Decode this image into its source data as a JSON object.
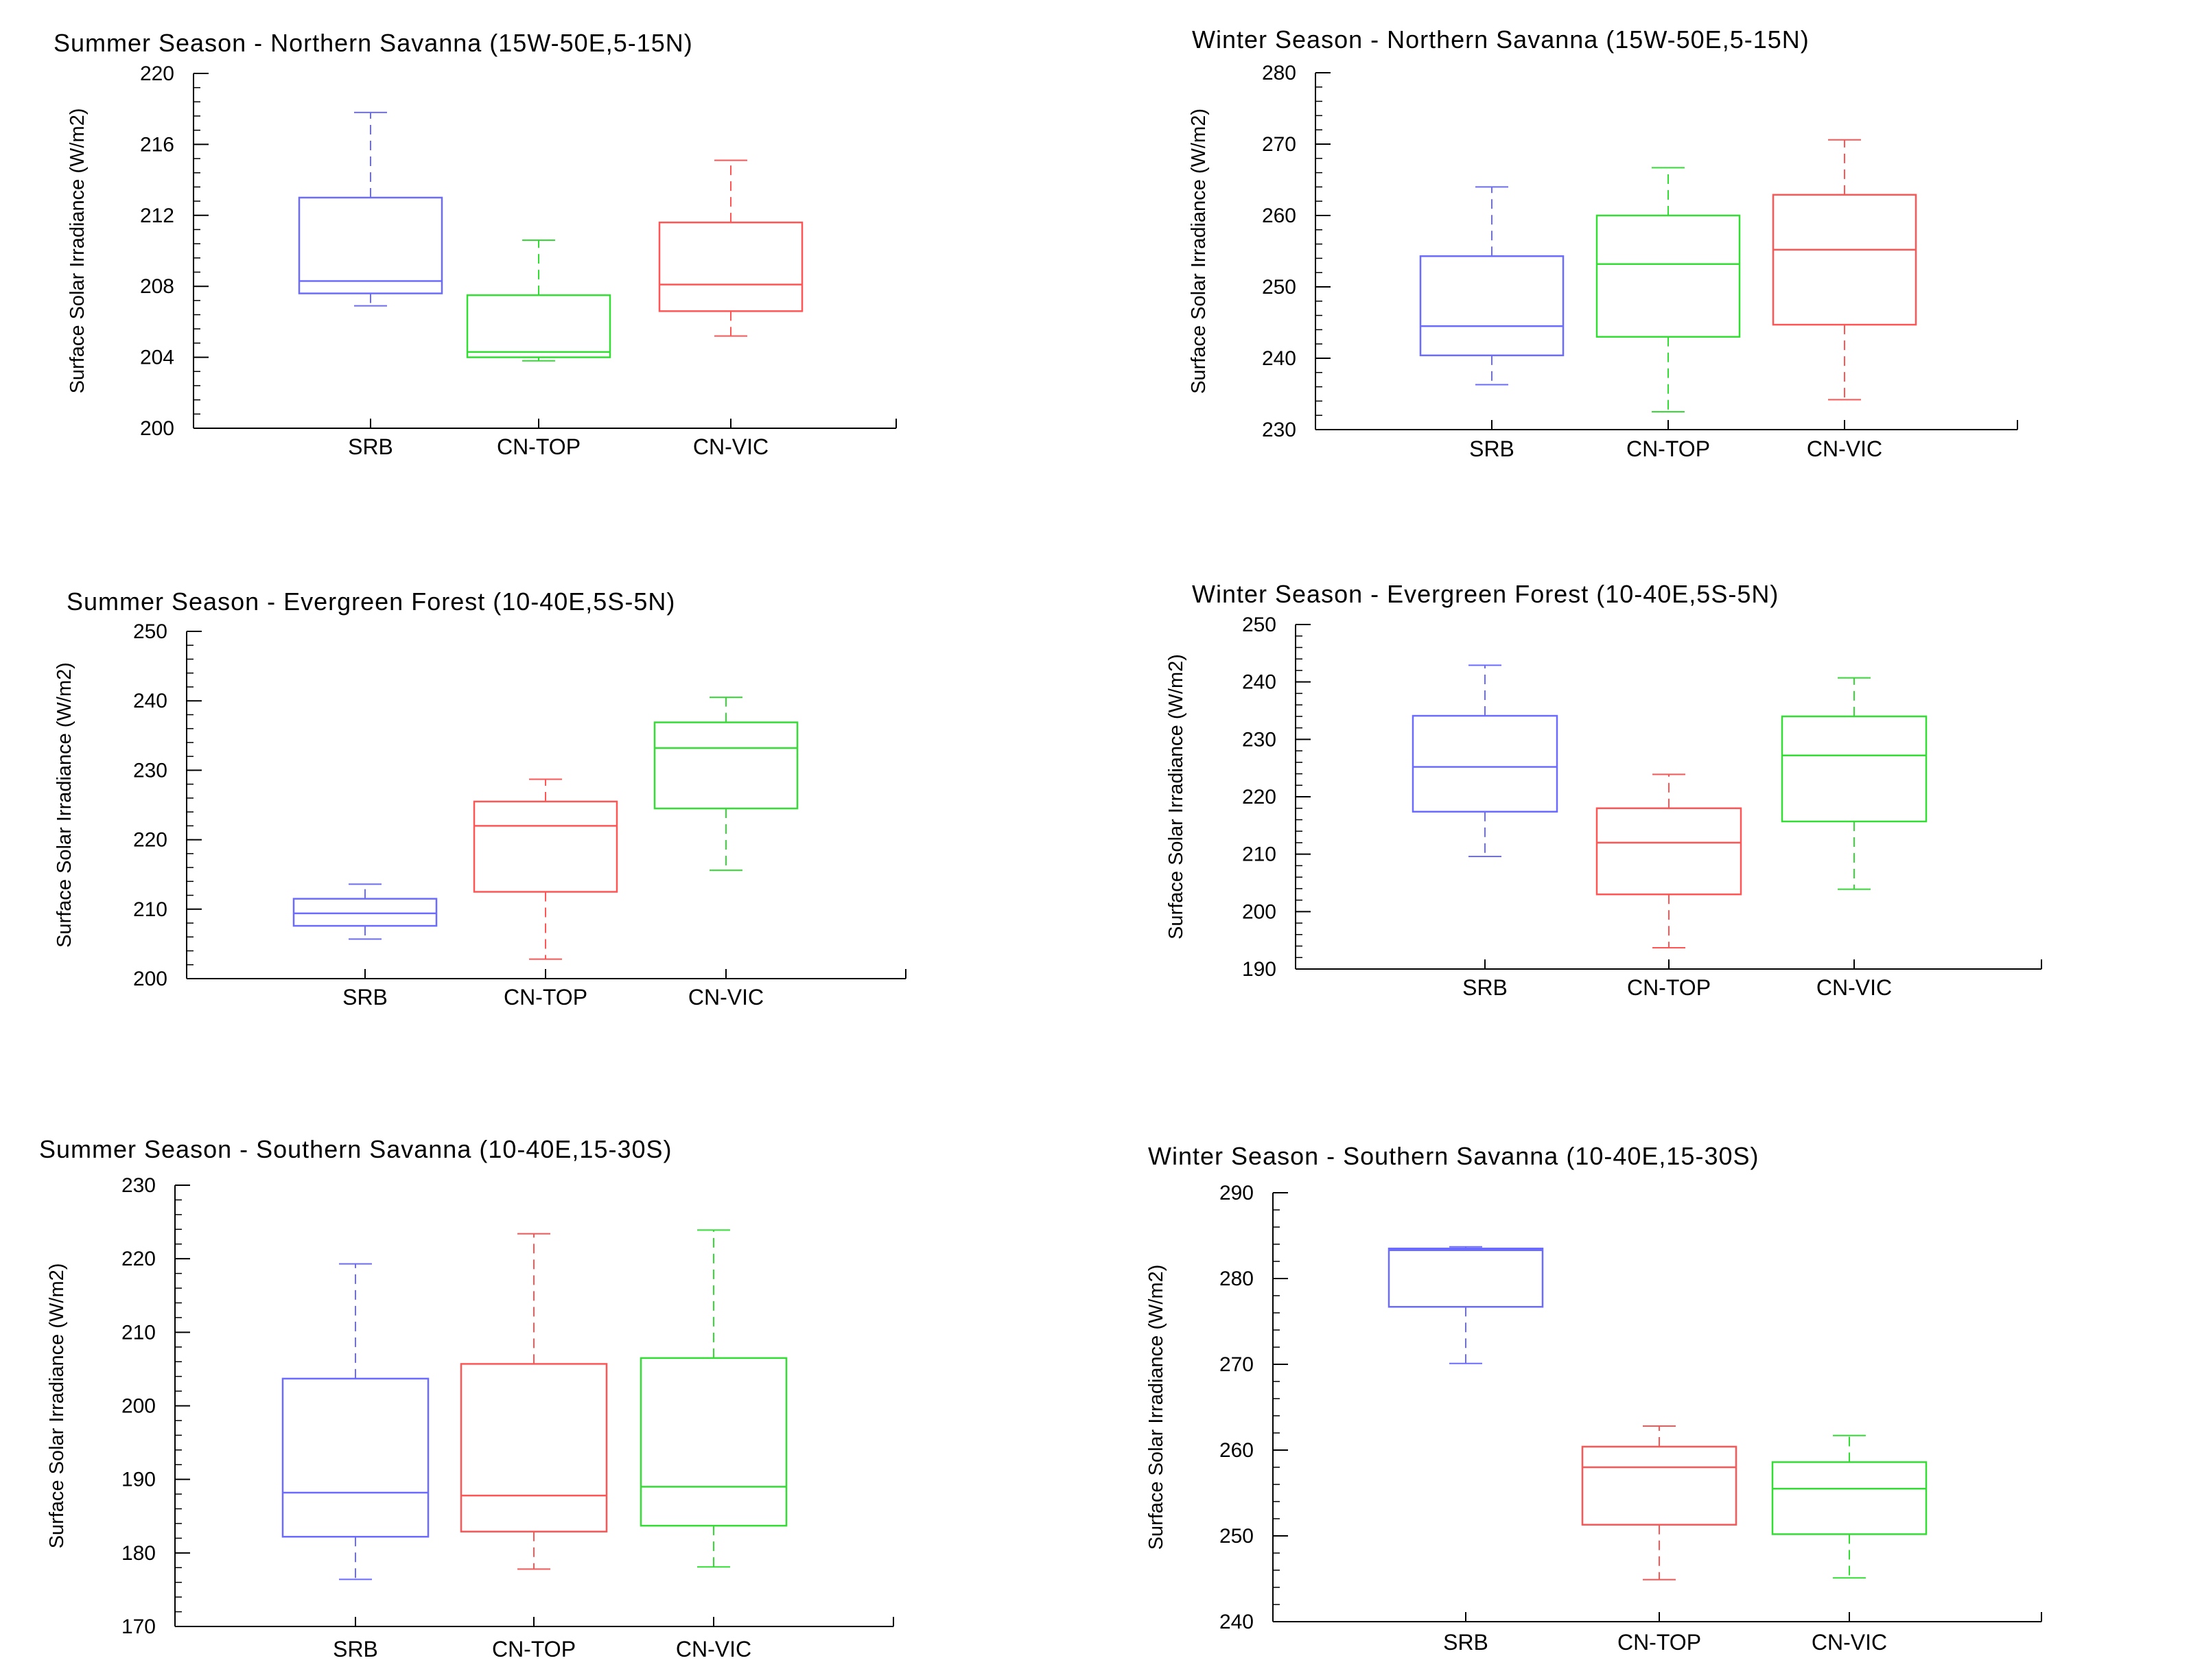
{
  "chart_data": [
    {
      "type": "box",
      "title": "Summer Season - Northern Savanna (15W-50E,5-15N)",
      "ylabel": "Surface Solar Irradiance (W/m2)",
      "ylim": [
        200,
        220
      ],
      "yticks": [
        200,
        204,
        208,
        212,
        216,
        220
      ],
      "minor_step": 0.8,
      "boxes": [
        {
          "label": "SRB",
          "color": "#6b6bff",
          "min": 206.9,
          "q1": 207.6,
          "median": 208.3,
          "q3": 213.0,
          "max": 217.8
        },
        {
          "label": "CN-TOP",
          "color": "#33dd33",
          "min": 203.8,
          "q1": 204.0,
          "median": 204.3,
          "q3": 207.5,
          "max": 210.6
        },
        {
          "label": "CN-VIC",
          "color": "#ff5555",
          "min": 205.2,
          "q1": 206.6,
          "median": 208.1,
          "q3": 211.6,
          "max": 215.1
        }
      ]
    },
    {
      "type": "box",
      "title": "Winter Season - Northern Savanna (15W-50E,5-15N)",
      "ylabel": "Surface Solar Irradiance (W/m2)",
      "ylim": [
        230,
        280
      ],
      "yticks": [
        230,
        240,
        250,
        260,
        270,
        280
      ],
      "minor_step": 2,
      "boxes": [
        {
          "label": "SRB",
          "color": "#6b6bff",
          "min": 236.3,
          "q1": 240.4,
          "median": 244.5,
          "q3": 254.3,
          "max": 264.0
        },
        {
          "label": "CN-TOP",
          "color": "#33dd33",
          "min": 232.5,
          "q1": 243.0,
          "median": 253.2,
          "q3": 260.0,
          "max": 266.7
        },
        {
          "label": "CN-VIC",
          "color": "#ff5555",
          "min": 234.2,
          "q1": 244.7,
          "median": 255.2,
          "q3": 262.9,
          "max": 270.6
        }
      ]
    },
    {
      "type": "box",
      "title": "Summer Season - Evergreen Forest (10-40E,5S-5N)",
      "ylabel": "Surface Solar Irradiance (W/m2)",
      "ylim": [
        200,
        250
      ],
      "yticks": [
        200,
        210,
        220,
        230,
        240,
        250
      ],
      "minor_step": 2,
      "boxes": [
        {
          "label": "SRB",
          "color": "#6b6bff",
          "min": 205.7,
          "q1": 207.6,
          "median": 209.4,
          "q3": 211.5,
          "max": 213.6
        },
        {
          "label": "CN-TOP",
          "color": "#ff5555",
          "min": 202.8,
          "q1": 212.5,
          "median": 222.0,
          "q3": 225.5,
          "max": 228.7
        },
        {
          "label": "CN-VIC",
          "color": "#33dd33",
          "min": 215.6,
          "q1": 224.5,
          "median": 233.2,
          "q3": 236.9,
          "max": 240.5
        }
      ]
    },
    {
      "type": "box",
      "title": "Winter Season - Evergreen Forest (10-40E,5S-5N)",
      "ylabel": "Surface Solar Irradiance (W/m2)",
      "ylim": [
        190,
        250
      ],
      "yticks": [
        190,
        200,
        210,
        220,
        230,
        240,
        250
      ],
      "minor_step": 2,
      "boxes": [
        {
          "label": "SRB",
          "color": "#6b6bff",
          "min": 209.6,
          "q1": 217.4,
          "median": 225.2,
          "q3": 234.1,
          "max": 242.9
        },
        {
          "label": "CN-TOP",
          "color": "#ff5555",
          "min": 193.7,
          "q1": 203.0,
          "median": 212.0,
          "q3": 218.0,
          "max": 223.9
        },
        {
          "label": "CN-VIC",
          "color": "#33dd33",
          "min": 203.9,
          "q1": 215.7,
          "median": 227.2,
          "q3": 234.0,
          "max": 240.7
        }
      ]
    },
    {
      "type": "box",
      "title": "Summer Season - Southern Savanna (10-40E,15-30S)",
      "ylabel": "Surface Solar Irradiance (W/m2)",
      "ylim": [
        170,
        230
      ],
      "yticks": [
        170,
        180,
        190,
        200,
        210,
        220,
        230
      ],
      "minor_step": 2,
      "boxes": [
        {
          "label": "SRB",
          "color": "#6b6bff",
          "min": 176.4,
          "q1": 182.2,
          "median": 188.2,
          "q3": 203.7,
          "max": 219.3
        },
        {
          "label": "CN-TOP",
          "color": "#ff5555",
          "min": 177.8,
          "q1": 182.9,
          "median": 187.8,
          "q3": 205.7,
          "max": 223.4
        },
        {
          "label": "CN-VIC",
          "color": "#33dd33",
          "min": 178.1,
          "q1": 183.7,
          "median": 189.0,
          "q3": 206.5,
          "max": 223.9
        }
      ]
    },
    {
      "type": "box",
      "title": "Winter Season - Southern Savanna (10-40E,15-30S)",
      "ylabel": "Surface Solar Irradiance (W/m2)",
      "ylim": [
        240,
        290
      ],
      "yticks": [
        240,
        250,
        260,
        270,
        280,
        290
      ],
      "minor_step": 2,
      "boxes": [
        {
          "label": "SRB",
          "color": "#6b6bff",
          "min": 270.1,
          "q1": 276.7,
          "median": 283.3,
          "q3": 283.5,
          "max": 283.7
        },
        {
          "label": "CN-TOP",
          "color": "#ff5555",
          "min": 244.9,
          "q1": 251.3,
          "median": 258.0,
          "q3": 260.4,
          "max": 262.8
        },
        {
          "label": "CN-VIC",
          "color": "#33dd33",
          "min": 245.1,
          "q1": 250.2,
          "median": 255.5,
          "q3": 258.6,
          "max": 261.7
        }
      ]
    }
  ]
}
